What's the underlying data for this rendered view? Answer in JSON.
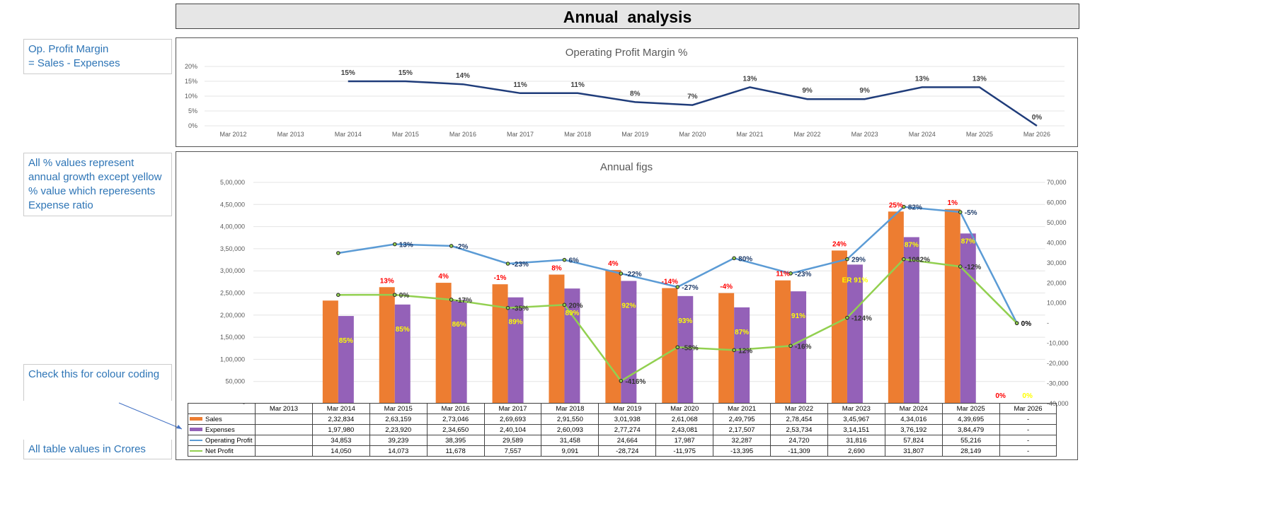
{
  "title": "Annual  analysis",
  "notes": {
    "op_margin": "Op. Profit Margin\n=  Sales - Expenses",
    "growth": "All % values represent annual growth except yellow % value which reperesents Expense ratio",
    "colour": "Check this for colour coding",
    "crores": "All table values in Crores"
  },
  "chart_data": [
    {
      "type": "line",
      "title": "Operating Profit Margin %",
      "categories": [
        "Mar 2012",
        "Mar 2013",
        "Mar 2014",
        "Mar 2015",
        "Mar 2016",
        "Mar 2017",
        "Mar 2018",
        "Mar 2019",
        "Mar 2020",
        "Mar 2021",
        "Mar 2022",
        "Mar 2023",
        "Mar 2024",
        "Mar 2025",
        "Mar 2026"
      ],
      "values": [
        null,
        null,
        15,
        15,
        14,
        11,
        11,
        8,
        7,
        13,
        9,
        9,
        13,
        13,
        0
      ],
      "labels": [
        "",
        "",
        "15%",
        "15%",
        "14%",
        "11%",
        "11%",
        "8%",
        "7%",
        "13%",
        "9%",
        "9%",
        "13%",
        "13%",
        "0%"
      ],
      "yticks": [
        "0%",
        "5%",
        "10%",
        "15%",
        "20%"
      ],
      "ylim": [
        0,
        20
      ],
      "color": "#1f3c7a",
      "grid": true
    },
    {
      "type": "bar+line",
      "title": "Annual figs",
      "categories": [
        "Mar 2013",
        "Mar 2014",
        "Mar 2015",
        "Mar 2016",
        "Mar 2017",
        "Mar 2018",
        "Mar 2019",
        "Mar 2020",
        "Mar 2021",
        "Mar 2022",
        "Mar 2023",
        "Mar 2024",
        "Mar 2025",
        "Mar 2026"
      ],
      "yticks_left": [
        "-",
        "50,000",
        "1,00,000",
        "1,50,000",
        "2,00,000",
        "2,50,000",
        "3,00,000",
        "3,50,000",
        "4,00,000",
        "4,50,000",
        "5,00,000"
      ],
      "ylim_left": [
        0,
        500000
      ],
      "yticks_right": [
        "-40,000",
        "-30,000",
        "-20,000",
        "-10,000",
        "-",
        "10,000",
        "20,000",
        "30,000",
        "40,000",
        "50,000",
        "60,000",
        "70,000"
      ],
      "ylim_right": [
        -40000,
        70000
      ],
      "series": [
        {
          "name": "Sales",
          "type": "bar",
          "axis": "left",
          "color": "#ed7d31",
          "values": [
            null,
            232834,
            263159,
            273046,
            269693,
            291550,
            301938,
            261068,
            249795,
            278454,
            345967,
            434016,
            439695,
            null
          ],
          "display": [
            "",
            "2,32,834",
            "2,63,159",
            "2,73,046",
            "2,69,693",
            "2,91,550",
            "3,01,938",
            "2,61,068",
            "2,49,795",
            "2,78,454",
            "3,45,967",
            "4,34,016",
            "4,39,695",
            "-"
          ],
          "labels": [
            "",
            "",
            "13%",
            "4%",
            "-1%",
            "8%",
            "4%",
            "-14%",
            "-4%",
            "11%",
            "24%",
            "25%",
            "1%",
            "0%"
          ],
          "label_color": "#ff0000"
        },
        {
          "name": "Expenses",
          "type": "bar",
          "axis": "left",
          "color": "#9461b8",
          "values": [
            null,
            197980,
            223920,
            234650,
            240104,
            260093,
            277274,
            243081,
            217507,
            253734,
            314151,
            376192,
            384479,
            null
          ],
          "display": [
            "",
            "1,97,980",
            "2,23,920",
            "2,34,650",
            "2,40,104",
            "2,60,093",
            "2,77,274",
            "2,43,081",
            "2,17,507",
            "2,53,734",
            "3,14,151",
            "3,76,192",
            "3,84,479",
            "-"
          ],
          "labels": [
            "",
            "85%",
            "85%",
            "86%",
            "89%",
            "89%",
            "92%",
            "93%",
            "87%",
            "91%",
            "ER 91%",
            "87%",
            "87%",
            "0%"
          ],
          "label_color": "#ffff00"
        },
        {
          "name": "Operating Profit",
          "type": "line",
          "axis": "right",
          "color": "#5b9bd5",
          "values": [
            null,
            34853,
            39239,
            38395,
            29589,
            31458,
            24664,
            17987,
            32287,
            24720,
            31816,
            57824,
            55216,
            0
          ],
          "display": [
            "",
            "34,853",
            "39,239",
            "38,395",
            "29,589",
            "31,458",
            "24,664",
            "17,987",
            "32,287",
            "24,720",
            "31,816",
            "57,824",
            "55,216",
            "-"
          ],
          "labels": [
            "",
            "",
            "13%",
            "-2%",
            "-23%",
            "6%",
            "-22%",
            "-27%",
            "80%",
            "-23%",
            "29%",
            "82%",
            "-5%",
            ""
          ],
          "label_color": "#1f3c6a"
        },
        {
          "name": "Net Profit",
          "type": "line",
          "axis": "right",
          "color": "#92d050",
          "values": [
            null,
            14050,
            14073,
            11678,
            7557,
            9091,
            -28724,
            -11975,
            -13395,
            -11309,
            2690,
            31807,
            28149,
            0
          ],
          "display": [
            "",
            "14,050",
            "14,073",
            "11,678",
            "7,557",
            "9,091",
            "-28,724",
            "-11,975",
            "-13,395",
            "-11,309",
            "2,690",
            "31,807",
            "28,149",
            "-"
          ],
          "labels": [
            "",
            "",
            "0%",
            "-17%",
            "-35%",
            "20%",
            "-416%",
            "-58%",
            "12%",
            "-16%",
            "-124%",
            "1082%",
            "-12%",
            "0%"
          ],
          "label_color": "#333333"
        }
      ],
      "grid": true,
      "legend": "table-bottom"
    }
  ]
}
